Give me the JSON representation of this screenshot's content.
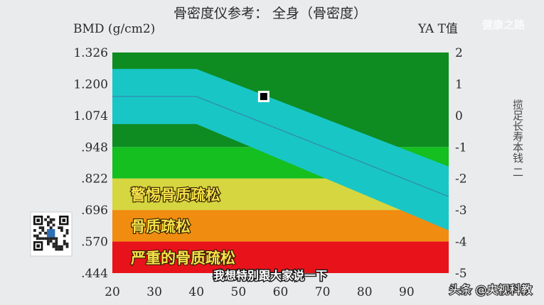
{
  "chart_data": {
    "type": "area",
    "title": "骨密度仪参考：  全身（骨密度）",
    "ylabel_left": "BMD (g/cm2)",
    "ylabel_right": "YA T值",
    "x_ticks": [
      20,
      30,
      40,
      50,
      60,
      70,
      80,
      90
    ],
    "xlim": [
      20,
      100
    ],
    "ylim": [
      0.444,
      1.326
    ],
    "y_ticks_left": [
      "1.326",
      "1.200",
      "1.074",
      ".948",
      ".822",
      ".696",
      ".570",
      ".444"
    ],
    "y_ticks_right": [
      "2",
      "1",
      "0",
      "-1",
      "-2",
      "-3",
      "-4",
      "-5"
    ],
    "zones": [
      {
        "label": "",
        "from": 0.948,
        "to": 1.326,
        "color": "#0e8c22"
      },
      {
        "label": "",
        "from": 0.822,
        "to": 0.948,
        "color": "#14bf1f"
      },
      {
        "label": "警惕骨质疏松",
        "from": 0.696,
        "to": 0.822,
        "color": "#d6d640"
      },
      {
        "label": "骨质疏松",
        "from": 0.57,
        "to": 0.696,
        "color": "#f08c10"
      },
      {
        "label": "严重的骨质疏松",
        "from": 0.444,
        "to": 0.57,
        "color": "#e8121a"
      }
    ],
    "reference_band": {
      "color": "#19c6c6",
      "x": [
        20,
        40,
        100
      ],
      "upper": [
        1.26,
        1.26,
        0.87
      ],
      "mean": [
        1.15,
        1.15,
        0.75
      ],
      "lower": [
        1.04,
        1.04,
        0.615
      ]
    },
    "patient_point": {
      "x": 56,
      "y": 1.15
    }
  },
  "overlays": {
    "watermark": "健康之路",
    "side_caption": "揽足长寿本钱  二",
    "subtitle": "我想特别跟大家说一下",
    "credit": "头条 @央视科教"
  }
}
